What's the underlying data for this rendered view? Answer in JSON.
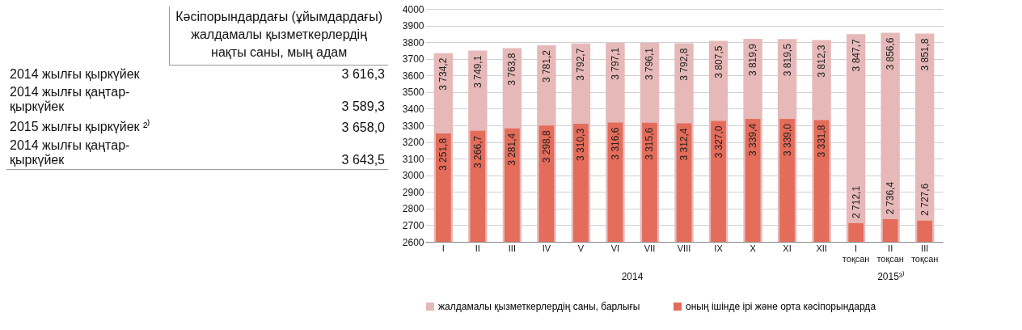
{
  "chart_data": [
    {
      "type": "other",
      "title": "Кәсіпорындардағы (ұйымдардағы) жалдамалы қызметкерлердің нақты саны, мың адам",
      "annotations": [
        "2014 жылғы қыркүйек",
        "3 616,3",
        "2014 жылғы қаңтар-қыркүйек",
        "3 589,3",
        "2015 жылғы қыркүйек ²⁾",
        "3 658,0",
        "2014 жылғы қаңтар-қыркүйек",
        "3 643,5"
      ]
    },
    {
      "type": "bar",
      "categories": [
        "I",
        "II",
        "III",
        "IV",
        "V",
        "VI",
        "VII",
        "VIII",
        "IX",
        "X",
        "XI",
        "XII",
        "I тоқсан",
        "II тоқсан",
        "III тоқсан"
      ],
      "series": [
        {
          "name": "жалдамалы қызметкерлердің саны, барлығы",
          "color": "#e6b9b8",
          "values": [
            3734.2,
            3749.1,
            3763.8,
            3781.2,
            3792.7,
            3797.1,
            3796.1,
            3792.8,
            3807.5,
            3819.9,
            3819.5,
            3812.3,
            3847.7,
            3856.6,
            3851.8
          ],
          "value_labels": [
            "3 734,2",
            "3 749,1",
            "3 763,8",
            "3 781,2",
            "3 792,7",
            "3 797,1",
            "3 796,1",
            "3 792,8",
            "3 807,5",
            "3 819,9",
            "3 819,5",
            "3 812,3",
            "3 847,7",
            "3 856,6",
            "3 851,8"
          ]
        },
        {
          "name": "оның ішінде ірі және орта кәсіпорындарда",
          "color": "#e46c5a",
          "values": [
            3251.8,
            3266.7,
            3281.4,
            3298.8,
            3310.3,
            3316.6,
            3315.6,
            3312.4,
            3327.0,
            3339.4,
            3339.0,
            3331.8,
            2712.1,
            2736.4,
            2727.6
          ],
          "value_labels": [
            "3 251,8",
            "3 266,7",
            "3 281,4",
            "3 298,8",
            "3 310,3",
            "3 316,6",
            "3 315,6",
            "3 312,4",
            "3 327,0",
            "3 339,4",
            "3 339,0",
            "3 331,8",
            "2 712,1",
            "2 736,4",
            "2 727,6"
          ]
        }
      ],
      "annotations": [
        "2014",
        "2015³⁾"
      ],
      "ylim": [
        2600,
        4000
      ],
      "yticks": [
        2600,
        2700,
        2800,
        2900,
        3000,
        3100,
        3200,
        3300,
        3400,
        3500,
        3600,
        3700,
        3800,
        3900,
        4000
      ],
      "grid": "y",
      "legend": "bottom"
    }
  ]
}
